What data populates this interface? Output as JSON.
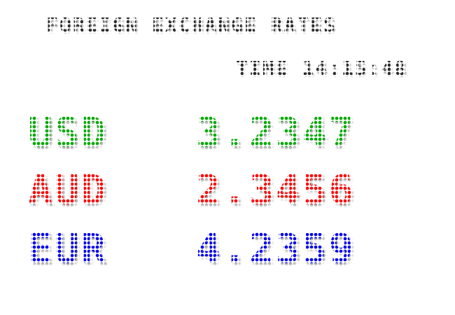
{
  "board": {
    "title": "FOREIGN EXCHANGE RATES",
    "time_label": "TIME 14:15:48"
  },
  "rates": [
    {
      "code": "USD",
      "value": "3.2347",
      "color": "#00aa00"
    },
    {
      "code": "AUD",
      "value": "2.3456",
      "color": "#ff0000"
    },
    {
      "code": "EUR",
      "value": "4.2359",
      "color": "#0000ee"
    }
  ]
}
